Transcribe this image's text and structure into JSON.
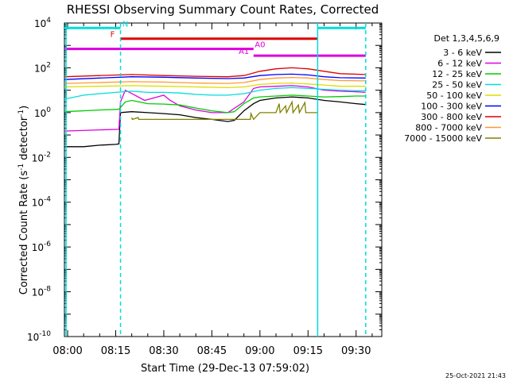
{
  "chart_data": {
    "type": "line",
    "title": "RHESSI Observing Summary Count Rates, Corrected",
    "xlabel": "Start Time (29-Dec-13 07:59:02)",
    "ylabel_main": "Corrected Count Rate (s",
    "ylabel_sup1": "-1",
    "ylabel_mid": " detector",
    "ylabel_sup2": "-1",
    "ylabel_end": ")",
    "y_scale": "log",
    "ylim": [
      1e-10,
      10000
    ],
    "xlim": [
      "07:59:02",
      "09:38:00"
    ],
    "x_ticks": [
      "08:00",
      "08:15",
      "08:30",
      "08:45",
      "09:00",
      "09:15",
      "09:30"
    ],
    "y_ticks": [
      {
        "base": "10",
        "exp": "4",
        "value": 10000
      },
      {
        "base": "10",
        "exp": "2",
        "value": 100
      },
      {
        "base": "10",
        "exp": "0",
        "value": 1
      },
      {
        "base": "10",
        "exp": "-2",
        "value": 0.01
      },
      {
        "base": "10",
        "exp": "-4",
        "value": 0.0001
      },
      {
        "base": "10",
        "exp": "-6",
        "value": 1e-06
      },
      {
        "base": "10",
        "exp": "-8",
        "value": 1e-08
      },
      {
        "base": "10",
        "exp": "-10",
        "value": 1e-10
      }
    ],
    "legend_title": "Det 1,3,4,5,6,9",
    "legend_position": "right",
    "timestamp": "25-Oct-2021 21:43",
    "series": [
      {
        "name": "3 - 6 keV",
        "color": "#000000",
        "points": [
          [
            "07:59",
            0.03
          ],
          [
            "08:05",
            0.03
          ],
          [
            "08:10",
            0.035
          ],
          [
            "08:15",
            0.038
          ],
          [
            "08:16",
            0.04
          ],
          [
            "08:16.5",
            1.0
          ],
          [
            "08:20",
            1.1
          ],
          [
            "08:25",
            1.0
          ],
          [
            "08:30",
            0.9
          ],
          [
            "08:35",
            0.8
          ],
          [
            "08:40",
            0.6
          ],
          [
            "08:45",
            0.5
          ],
          [
            "08:50",
            0.4
          ],
          [
            "08:52",
            0.45
          ],
          [
            "08:55",
            1.2
          ],
          [
            "08:58",
            2.5
          ],
          [
            "09:00",
            3.5
          ],
          [
            "09:05",
            4.5
          ],
          [
            "09:10",
            5.0
          ],
          [
            "09:15",
            4.5
          ],
          [
            "09:20",
            3.5
          ],
          [
            "09:25",
            3.0
          ],
          [
            "09:30",
            2.5
          ],
          [
            "09:33",
            2.3
          ]
        ]
      },
      {
        "name": "6 - 12 keV",
        "color": "#dd00dd",
        "points": [
          [
            "07:59",
            0.15
          ],
          [
            "08:10",
            0.17
          ],
          [
            "08:16",
            0.18
          ],
          [
            "08:16.5",
            3.0
          ],
          [
            "08:18",
            10.0
          ],
          [
            "08:21",
            6.0
          ],
          [
            "08:24",
            3.5
          ],
          [
            "08:28",
            5.0
          ],
          [
            "08:30",
            6.0
          ],
          [
            "08:32",
            3.5
          ],
          [
            "08:35",
            2.0
          ],
          [
            "08:40",
            1.3
          ],
          [
            "08:45",
            1.0
          ],
          [
            "08:50",
            1.0
          ],
          [
            "08:55",
            3.0
          ],
          [
            "08:58",
            12.0
          ],
          [
            "09:00",
            14.0
          ],
          [
            "09:05",
            15.0
          ],
          [
            "09:10",
            16.0
          ],
          [
            "09:15",
            14.0
          ],
          [
            "09:20",
            10.0
          ],
          [
            "09:25",
            9.0
          ],
          [
            "09:30",
            8.5
          ],
          [
            "09:33",
            8.0
          ]
        ]
      },
      {
        "name": "12 - 25 keV",
        "color": "#00cc00",
        "points": [
          [
            "07:59",
            1.1
          ],
          [
            "08:10",
            1.3
          ],
          [
            "08:16",
            1.4
          ],
          [
            "08:18",
            3.0
          ],
          [
            "08:20",
            3.5
          ],
          [
            "08:25",
            2.5
          ],
          [
            "08:30",
            2.4
          ],
          [
            "08:35",
            2.2
          ],
          [
            "08:40",
            1.6
          ],
          [
            "08:45",
            1.2
          ],
          [
            "08:50",
            1.0
          ],
          [
            "08:52",
            1.1
          ],
          [
            "08:55",
            2.5
          ],
          [
            "08:58",
            4.5
          ],
          [
            "09:00",
            5.0
          ],
          [
            "09:05",
            5.5
          ],
          [
            "09:10",
            6.0
          ],
          [
            "09:15",
            5.5
          ],
          [
            "09:20",
            5.0
          ],
          [
            "09:25",
            5.2
          ],
          [
            "09:30",
            5.5
          ],
          [
            "09:33",
            5.5
          ]
        ]
      },
      {
        "name": "25 - 50 keV",
        "color": "#00dddd",
        "points": [
          [
            "07:59",
            4.0
          ],
          [
            "08:05",
            6.0
          ],
          [
            "08:10",
            7.0
          ],
          [
            "08:15",
            8.0
          ],
          [
            "08:20",
            9.0
          ],
          [
            "08:25",
            8.0
          ],
          [
            "08:30",
            8.0
          ],
          [
            "08:35",
            7.5
          ],
          [
            "08:40",
            6.5
          ],
          [
            "08:45",
            6.0
          ],
          [
            "08:50",
            6.0
          ],
          [
            "08:55",
            7.0
          ],
          [
            "09:00",
            10.0
          ],
          [
            "09:05",
            12.0
          ],
          [
            "09:10",
            13.0
          ],
          [
            "09:15",
            12.0
          ],
          [
            "09:20",
            11.0
          ],
          [
            "09:25",
            10.0
          ],
          [
            "09:30",
            9.5
          ],
          [
            "09:33",
            9.5
          ]
        ]
      },
      {
        "name": "50 - 100 keV",
        "color": "#dddd00",
        "points": [
          [
            "07:59",
            14.0
          ],
          [
            "08:10",
            15.0
          ],
          [
            "08:20",
            16.0
          ],
          [
            "08:30",
            15.0
          ],
          [
            "08:40",
            14.0
          ],
          [
            "08:50",
            13.0
          ],
          [
            "08:55",
            14.0
          ],
          [
            "09:00",
            18.0
          ],
          [
            "09:05",
            20.0
          ],
          [
            "09:10",
            21.0
          ],
          [
            "09:15",
            19.0
          ],
          [
            "09:20",
            17.0
          ],
          [
            "09:25",
            15.0
          ],
          [
            "09:33",
            15.0
          ]
        ]
      },
      {
        "name": "100 - 300 keV",
        "color": "#0000ff",
        "points": [
          [
            "07:59",
            30.0
          ],
          [
            "08:10",
            35.0
          ],
          [
            "08:20",
            40.0
          ],
          [
            "08:30",
            38.0
          ],
          [
            "08:40",
            35.0
          ],
          [
            "08:50",
            33.0
          ],
          [
            "08:55",
            35.0
          ],
          [
            "09:00",
            45.0
          ],
          [
            "09:05",
            50.0
          ],
          [
            "09:10",
            52.0
          ],
          [
            "09:15",
            48.0
          ],
          [
            "09:20",
            40.0
          ],
          [
            "09:25",
            36.0
          ],
          [
            "09:33",
            35.0
          ]
        ]
      },
      {
        "name": "300 - 800 keV",
        "color": "#dd0000",
        "points": [
          [
            "07:59",
            40.0
          ],
          [
            "08:10",
            45.0
          ],
          [
            "08:20",
            50.0
          ],
          [
            "08:30",
            45.0
          ],
          [
            "08:40",
            42.0
          ],
          [
            "08:50",
            40.0
          ],
          [
            "08:55",
            45.0
          ],
          [
            "09:00",
            70.0
          ],
          [
            "09:05",
            90.0
          ],
          [
            "09:10",
            100.0
          ],
          [
            "09:15",
            90.0
          ],
          [
            "09:20",
            70.0
          ],
          [
            "09:25",
            55.0
          ],
          [
            "09:33",
            50.0
          ]
        ]
      },
      {
        "name": "800 - 7000 keV",
        "color": "#ff9933",
        "points": [
          [
            "07:59",
            20.0
          ],
          [
            "08:10",
            22.0
          ],
          [
            "08:20",
            24.0
          ],
          [
            "08:30",
            23.0
          ],
          [
            "08:40",
            21.0
          ],
          [
            "08:50",
            20.0
          ],
          [
            "08:55",
            22.0
          ],
          [
            "09:00",
            30.0
          ],
          [
            "09:05",
            35.0
          ],
          [
            "09:10",
            37.0
          ],
          [
            "09:15",
            35.0
          ],
          [
            "09:20",
            30.0
          ],
          [
            "09:25",
            27.0
          ],
          [
            "09:33",
            26.0
          ]
        ]
      },
      {
        "name": "7000 - 15000 keV",
        "color": "#808000",
        "points": [
          [
            "08:20",
            0.6
          ],
          [
            "08:20.2",
            0.5
          ],
          [
            "08:22",
            0.6
          ],
          [
            "08:22.2",
            0.5
          ],
          [
            "08:57",
            0.5
          ],
          [
            "08:57.2",
            0.9
          ],
          [
            "08:58",
            0.5
          ],
          [
            "09:00",
            1.0
          ],
          [
            "09:05",
            1.0
          ],
          [
            "09:06",
            2.5
          ],
          [
            "09:06.3",
            1.0
          ],
          [
            "09:08",
            2.0
          ],
          [
            "09:08.3",
            1.0
          ],
          [
            "09:10",
            3.0
          ],
          [
            "09:10.3",
            1.0
          ],
          [
            "09:12",
            2.2
          ],
          [
            "09:12.3",
            1.0
          ],
          [
            "09:14",
            2.8
          ],
          [
            "09:14.3",
            1.0
          ],
          [
            "09:18",
            1.0
          ]
        ]
      }
    ],
    "vertical_lines": [
      {
        "time": "07:59.5",
        "color": "#00dddd",
        "style": "solid"
      },
      {
        "time": "08:16.5",
        "color": "#00dddd",
        "style": "dashed"
      },
      {
        "time": "09:18",
        "color": "#00dddd",
        "style": "solid"
      },
      {
        "time": "09:33",
        "color": "#00dddd",
        "style": "dashed"
      }
    ],
    "flag_bars": [
      {
        "label": "N",
        "color": "#00dddd",
        "segments": [
          [
            "07:59",
            "08:16.5"
          ],
          [
            "09:18",
            "09:33"
          ]
        ],
        "level": 6000,
        "label_at": "08:18"
      },
      {
        "label": "F",
        "color": "#dd0000",
        "segments": [
          [
            "08:16.5",
            "09:18"
          ]
        ],
        "level": 2000,
        "label_at": "08:14"
      },
      {
        "label": "A0",
        "color": "#dd00dd",
        "segments": [
          [
            "07:59",
            "08:58"
          ]
        ],
        "level": 700,
        "label_at": "09:00"
      },
      {
        "label": "A1",
        "color": "#dd00dd",
        "segments": [
          [
            "08:58",
            "09:33"
          ]
        ],
        "level": 350,
        "label_at": "08:55"
      }
    ]
  }
}
